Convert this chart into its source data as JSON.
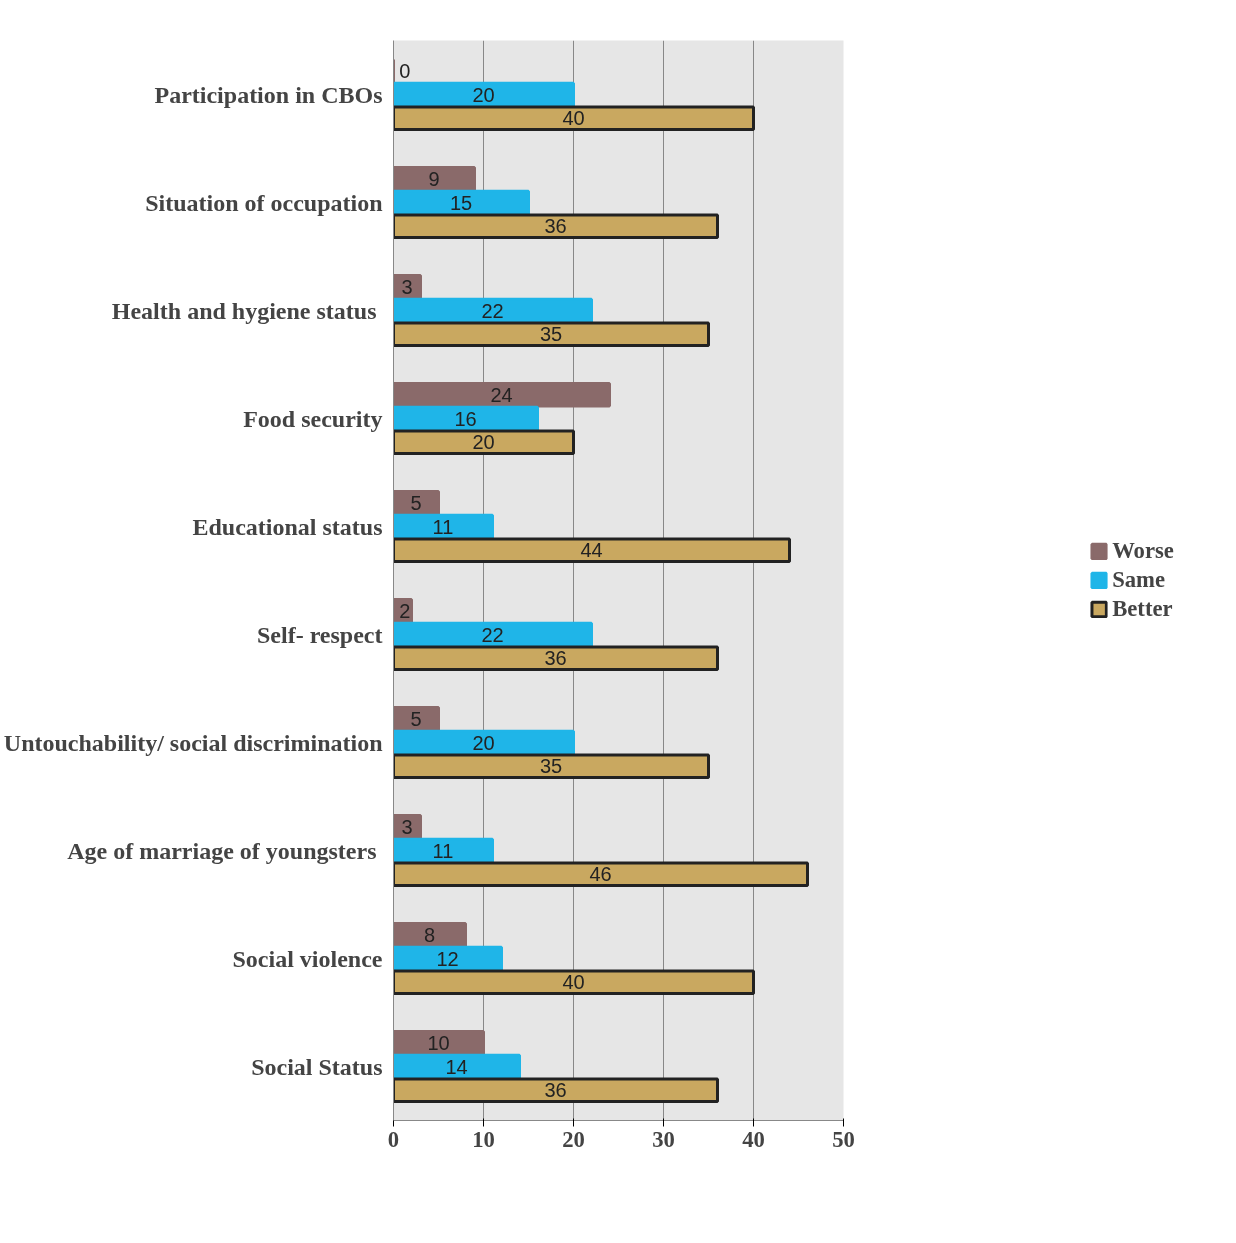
{
  "chart_data": {
    "type": "bar",
    "orientation": "horizontal",
    "categories": [
      "Participation in CBOs",
      "Situation of occupation",
      "Health and hygiene  status",
      "Food security",
      "Educational status",
      "Self- respect",
      "Untouchability/ social discrimination",
      "Age of marriage  of youngsters",
      "Social violence",
      "Social Status"
    ],
    "series": [
      {
        "name": "Worse",
        "color": "#8a6a6a",
        "values": [
          0,
          9,
          3,
          24,
          5,
          2,
          5,
          3,
          8,
          10
        ]
      },
      {
        "name": "Same",
        "color": "#1fb5e8",
        "values": [
          20,
          15,
          22,
          16,
          11,
          22,
          20,
          11,
          12,
          14
        ]
      },
      {
        "name": "Better",
        "color": "#c9a860",
        "values": [
          40,
          36,
          35,
          20,
          44,
          36,
          35,
          46,
          40,
          36
        ]
      }
    ],
    "xlim": [
      0,
      50
    ],
    "xticks": [
      0,
      10,
      20,
      30,
      40,
      50
    ],
    "grid": "x",
    "legend": "right",
    "data_labels": true
  }
}
